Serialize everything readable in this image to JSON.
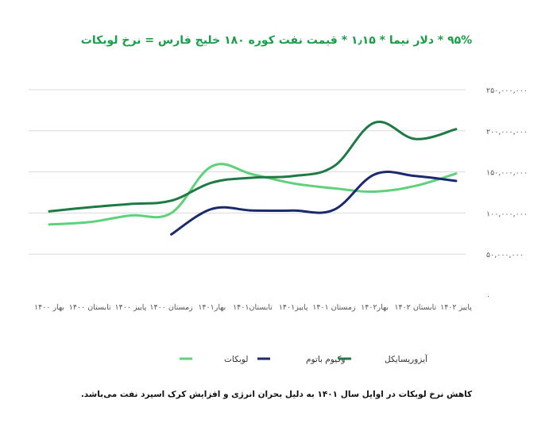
{
  "chart_data": {
    "type": "line",
    "title": "۹۵% * دلار نیما * ۱٫۱۵ * قیمت نفت کوره ۱۸۰ خلیج فارس = نرخ لوبکات",
    "caption": "کاهش نرخ لوبکات در اوایل سال ۱۴۰۱ به دلیل بحران انرژی و افزایش کرک اسپرد نفت می‌باشد.",
    "categories": [
      "بهار ۱۴۰۰",
      "تابستان ۱۴۰۰",
      "پاییز ۱۴۰۰",
      "زمستان ۱۴۰۰",
      "بهار۱۴۰۱",
      "تابستان۱۴۰۱",
      "پاییز۱۴۰۱",
      "زمستان ۱۴۰۱",
      "بهار۱۴۰۲",
      "تابستان ۱۴۰۲",
      "پاییز ۱۴۰۲"
    ],
    "y_ticks": [
      "۰",
      "۵۰,۰۰۰,۰۰۰",
      "۱۰۰,۰۰۰,۰۰۰",
      "۱۵۰,۰۰۰,۰۰۰",
      "۲۰۰,۰۰۰,۰۰۰",
      "۲۵۰,۰۰۰,۰۰۰"
    ],
    "ylim": [
      0,
      250000000
    ],
    "grid": true,
    "legend_position": "bottom",
    "series": [
      {
        "name": "لوبکات",
        "color": "#5fd17a",
        "values": [
          86000000,
          89000000,
          97000000,
          100000000,
          157000000,
          147000000,
          136000000,
          130000000,
          126000000,
          133000000,
          148000000
        ]
      },
      {
        "name": "وکیوم باتوم",
        "color": "#1a2a6c",
        "values": [
          null,
          null,
          null,
          74000000,
          105000000,
          103000000,
          103000000,
          104000000,
          147000000,
          145000000,
          139000000
        ]
      },
      {
        "name": "آیزوریسایکل",
        "color": "#1e7a45",
        "values": [
          102000000,
          107000000,
          111000000,
          115000000,
          137000000,
          143000000,
          145000000,
          157000000,
          210000000,
          190000000,
          202000000
        ]
      }
    ]
  }
}
